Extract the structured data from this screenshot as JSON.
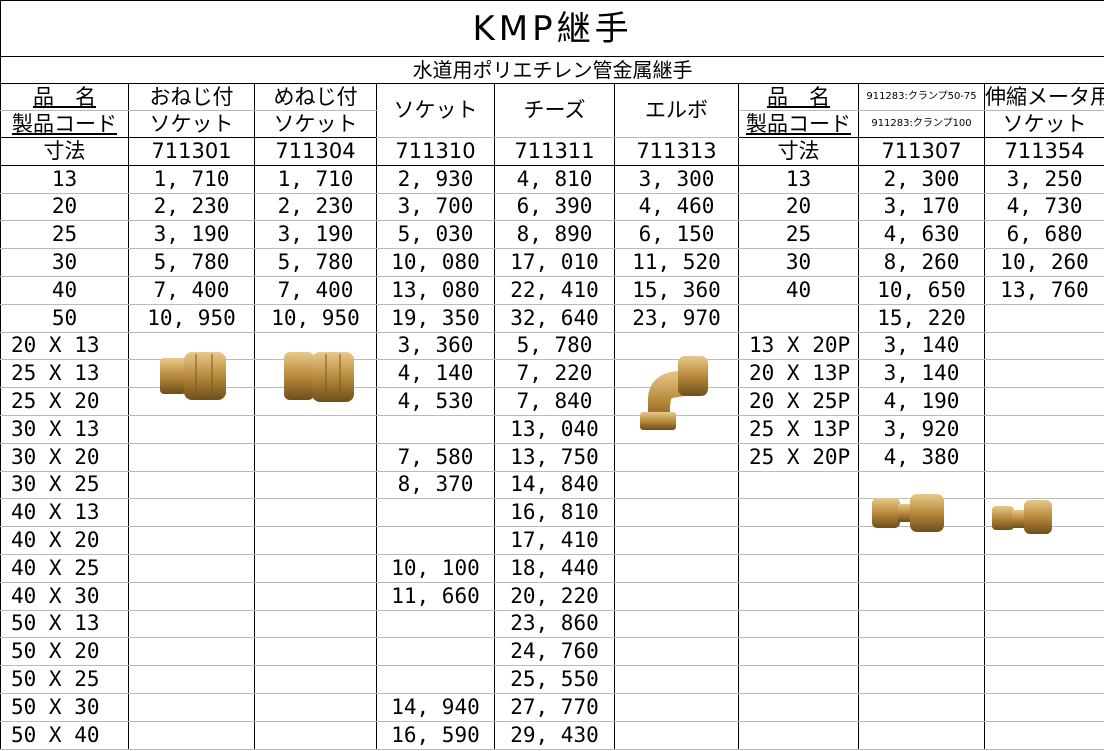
{
  "header": {
    "title": "KMP継手",
    "subtitle": "水道用ポリエチレン管金属継手",
    "row1": [
      "品　名",
      "おねじ付",
      "めねじ付",
      "ソケット",
      "チーズ",
      "エルボ",
      "品　名",
      "911283:クランプ50-75",
      "伸縮メータ用"
    ],
    "row2": [
      "製品コード",
      "ソケット",
      "ソケット",
      null,
      null,
      null,
      "製品コード",
      "911283:クランプ100",
      "ソケット"
    ]
  },
  "table": {
    "rows": [
      [
        "寸法",
        "711301",
        "711304",
        "711310",
        "711311",
        "711313",
        "寸法",
        "711307",
        "711354"
      ],
      [
        "13",
        "1, 710",
        "1, 710",
        "2, 930",
        "4, 810",
        "3, 300",
        "13",
        "2, 300",
        "3, 250"
      ],
      [
        "20",
        "2, 230",
        "2, 230",
        "3, 700",
        "6, 390",
        "4, 460",
        "20",
        "3, 170",
        "4, 730"
      ],
      [
        "25",
        "3, 190",
        "3, 190",
        "5, 030",
        "8, 890",
        "6, 150",
        "25",
        "4, 630",
        "6, 680"
      ],
      [
        "30",
        "5, 780",
        "5, 780",
        "10, 080",
        "17, 010",
        "11, 520",
        "30",
        "8, 260",
        "10, 260"
      ],
      [
        "40",
        "7, 400",
        "7, 400",
        "13, 080",
        "22, 410",
        "15, 360",
        "40",
        "10, 650",
        "13, 760"
      ],
      [
        "50",
        "10, 950",
        "10, 950",
        "19, 350",
        "32, 640",
        "23, 970",
        null,
        "15, 220",
        null
      ],
      [
        "20 X 13",
        null,
        null,
        "3, 360",
        "5, 780",
        null,
        "13 X 20P",
        "3, 140",
        null
      ],
      [
        "25 X 13",
        null,
        null,
        "4, 140",
        "7, 220",
        null,
        "20 X 13P",
        "3, 140",
        null
      ],
      [
        "25 X 20",
        null,
        null,
        "4, 530",
        "7, 840",
        null,
        "20 X 25P",
        "4, 190",
        null
      ],
      [
        "30 X 13",
        null,
        null,
        null,
        "13, 040",
        null,
        "25 X 13P",
        "3, 920",
        null
      ],
      [
        "30 X 20",
        null,
        null,
        "7, 580",
        "13, 750",
        null,
        "25 X 20P",
        "4, 380",
        null
      ],
      [
        "30 X 25",
        null,
        null,
        "8, 370",
        "14, 840",
        null,
        null,
        null,
        null
      ],
      [
        "40 X 13",
        null,
        null,
        null,
        "16, 810",
        null,
        null,
        null,
        null
      ],
      [
        "40 X 20",
        null,
        null,
        null,
        "17, 410",
        null,
        null,
        null,
        null
      ],
      [
        "40 X 25",
        null,
        null,
        "10, 100",
        "18, 440",
        null,
        null,
        null,
        null
      ],
      [
        "40 X 30",
        null,
        null,
        "11, 660",
        "20, 220",
        null,
        null,
        null,
        null
      ],
      [
        "50 X 13",
        null,
        null,
        null,
        "23, 860",
        null,
        null,
        null,
        null
      ],
      [
        "50 X 20",
        null,
        null,
        null,
        "24, 760",
        null,
        null,
        null,
        null
      ],
      [
        "50 X 25",
        null,
        null,
        null,
        "25, 550",
        null,
        null,
        null,
        null
      ],
      [
        "50 X 30",
        null,
        null,
        "14, 940",
        "27, 770",
        null,
        null,
        null,
        null
      ],
      [
        "50 X 40",
        null,
        null,
        "16, 590",
        "29, 430",
        null,
        null,
        null,
        null
      ]
    ]
  }
}
